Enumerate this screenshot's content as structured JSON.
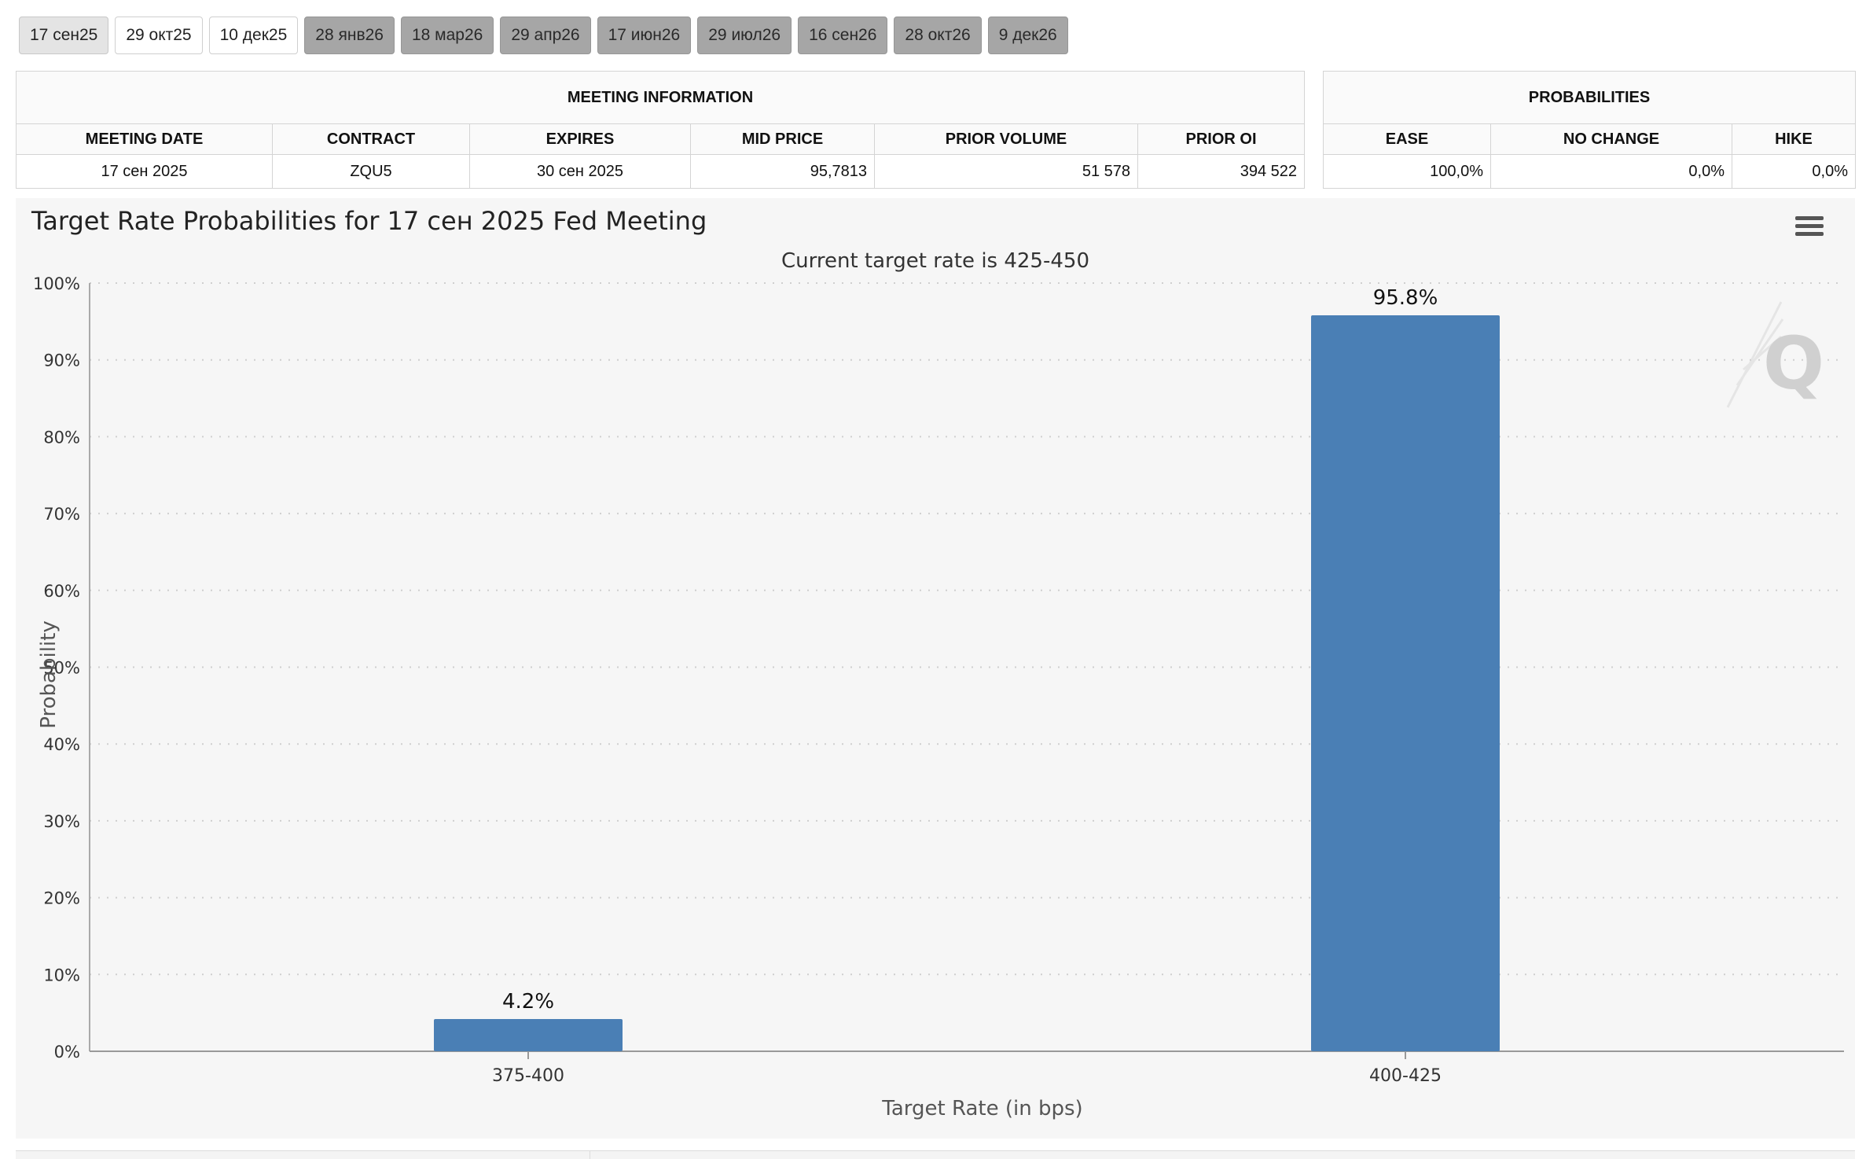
{
  "tabs": [
    {
      "label": "17 сен25",
      "state": "active"
    },
    {
      "label": "29 окт25",
      "state": "normal"
    },
    {
      "label": "10 дек25",
      "state": "normal"
    },
    {
      "label": "28 янв26",
      "state": "future"
    },
    {
      "label": "18 мар26",
      "state": "future"
    },
    {
      "label": "29 апр26",
      "state": "future"
    },
    {
      "label": "17 июн26",
      "state": "future"
    },
    {
      "label": "29 июл26",
      "state": "future"
    },
    {
      "label": "16 сен26",
      "state": "future"
    },
    {
      "label": "28 окт26",
      "state": "future"
    },
    {
      "label": "9 дек26",
      "state": "future"
    }
  ],
  "meeting_info": {
    "caption": "MEETING INFORMATION",
    "headers": {
      "meeting_date": "MEETING DATE",
      "contract": "CONTRACT",
      "expires": "EXPIRES",
      "mid_price": "MID PRICE",
      "prior_volume": "PRIOR VOLUME",
      "prior_oi": "PRIOR OI"
    },
    "values": {
      "meeting_date": "17 сен 2025",
      "contract": "ZQU5",
      "expires": "30 сен 2025",
      "mid_price": "95,7813",
      "prior_volume": "51 578",
      "prior_oi": "394 522"
    }
  },
  "probabilities": {
    "caption": "PROBABILITIES",
    "headers": {
      "ease": "EASE",
      "no_change": "NO CHANGE",
      "hike": "HIKE"
    },
    "values": {
      "ease": "100,0%",
      "no_change": "0,0%",
      "hike": "0,0%"
    }
  },
  "chart_menu": {
    "icon": "hamburger-menu-icon"
  },
  "chart_data": {
    "type": "bar",
    "title": "Target Rate Probabilities for 17 сен 2025 Fed Meeting",
    "subtitle": "Current target rate is 425-450",
    "xlabel": "Target Rate (in bps)",
    "ylabel": "Probability",
    "categories": [
      "375-400",
      "400-425"
    ],
    "values": [
      4.2,
      95.8
    ],
    "data_labels": [
      "4.2%",
      "95.8%"
    ],
    "ylim": [
      0,
      100
    ],
    "yticks": [
      0,
      10,
      20,
      30,
      40,
      50,
      60,
      70,
      80,
      90,
      100
    ],
    "ytick_labels": [
      "0%",
      "10%",
      "20%",
      "30%",
      "40%",
      "50%",
      "60%",
      "70%",
      "80%",
      "90%",
      "100%"
    ],
    "grid": true,
    "bar_color": "#4a7fb5",
    "watermark": "Q"
  }
}
